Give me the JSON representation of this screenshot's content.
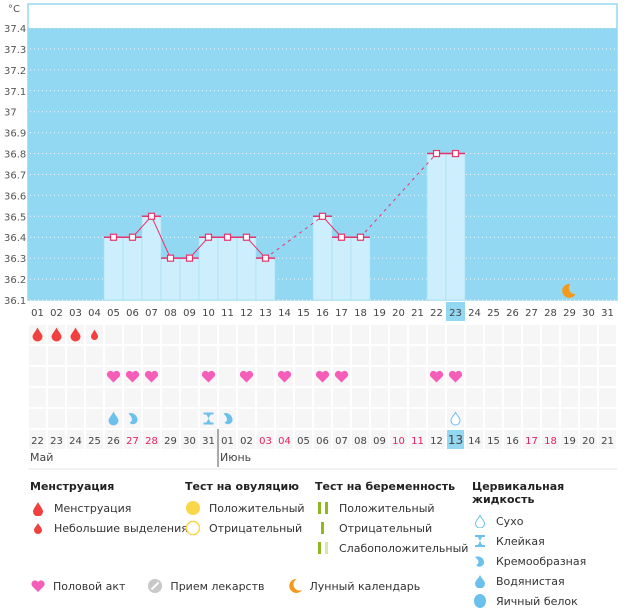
{
  "chart_data": {
    "type": "bar",
    "title": "",
    "unit_label": "°C",
    "ylim": [
      36.1,
      37.4
    ],
    "yticks": [
      "37.4",
      "37.3",
      "37.2",
      "37.1",
      "37",
      "36.9",
      "36.8",
      "36.7",
      "36.6",
      "36.5",
      "36.4",
      "36.3",
      "36.2",
      "36.1"
    ],
    "ytick_values": [
      37.4,
      37.3,
      37.2,
      37.1,
      37.0,
      36.9,
      36.8,
      36.7,
      36.6,
      36.5,
      36.4,
      36.3,
      36.2,
      36.1
    ],
    "cycle_days": [
      "01",
      "02",
      "03",
      "04",
      "05",
      "06",
      "07",
      "08",
      "09",
      "10",
      "11",
      "12",
      "13",
      "14",
      "15",
      "16",
      "17",
      "18",
      "19",
      "20",
      "21",
      "22",
      "23",
      "24",
      "25",
      "26",
      "27",
      "28",
      "29",
      "30",
      "31"
    ],
    "temperatures": [
      null,
      null,
      null,
      null,
      36.4,
      36.4,
      36.5,
      36.3,
      36.3,
      36.4,
      36.4,
      36.4,
      36.3,
      null,
      null,
      36.5,
      36.4,
      36.4,
      null,
      null,
      null,
      36.8,
      36.8,
      null,
      null,
      null,
      null,
      null,
      null,
      null,
      null
    ],
    "selected_day": "23",
    "moon_day": "29",
    "colors": {
      "background": "#93d8f3",
      "bar": "#cdeefc",
      "line": "#e8336b",
      "selected": "#93d8f3",
      "moon": "#f39a1b"
    }
  },
  "symptom_rows": {
    "menstruation": [
      "heavy",
      "heavy",
      "heavy",
      "light",
      null,
      null,
      null,
      null,
      null,
      null,
      null,
      null,
      null,
      null,
      null,
      null,
      null,
      null,
      null,
      null,
      null,
      null,
      null,
      null,
      null,
      null,
      null,
      null,
      null,
      null,
      null
    ],
    "ovulation_test": [
      null,
      null,
      null,
      null,
      null,
      null,
      null,
      null,
      null,
      null,
      null,
      null,
      null,
      null,
      null,
      null,
      null,
      null,
      null,
      null,
      null,
      null,
      null,
      null,
      null,
      null,
      null,
      null,
      null,
      null,
      null
    ],
    "intercourse": [
      false,
      false,
      false,
      false,
      true,
      true,
      true,
      false,
      false,
      true,
      false,
      true,
      false,
      true,
      false,
      true,
      true,
      false,
      false,
      false,
      false,
      true,
      true,
      false,
      false,
      false,
      false,
      false,
      false,
      false,
      false
    ],
    "pregnancy_test": [
      null,
      null,
      null,
      null,
      null,
      null,
      null,
      null,
      null,
      null,
      null,
      null,
      null,
      null,
      null,
      null,
      null,
      null,
      null,
      null,
      null,
      null,
      null,
      null,
      null,
      null,
      null,
      null,
      null,
      null,
      null
    ],
    "cervical_fluid": [
      null,
      null,
      null,
      null,
      "watery",
      "creamy",
      null,
      null,
      null,
      "sticky",
      "creamy",
      null,
      null,
      null,
      null,
      null,
      null,
      null,
      null,
      null,
      null,
      null,
      "dry",
      null,
      null,
      null,
      null,
      null,
      null,
      null,
      null
    ]
  },
  "calendar": {
    "dates": [
      "22",
      "23",
      "24",
      "25",
      "26",
      "27",
      "28",
      "29",
      "30",
      "31",
      "01",
      "02",
      "03",
      "04",
      "05",
      "06",
      "07",
      "08",
      "09",
      "10",
      "11",
      "12",
      "13",
      "14",
      "15",
      "16",
      "17",
      "18",
      "19",
      "20",
      "21"
    ],
    "highlighted_dates": [
      5,
      6,
      12,
      13,
      19,
      20,
      26,
      27
    ],
    "selected_index": 22,
    "months": [
      {
        "label": "Май",
        "start": 0
      },
      {
        "label": "Июнь",
        "start": 10
      }
    ]
  },
  "legend": {
    "menstruation": {
      "title": "Менструация",
      "items": [
        "Менструация",
        "Небольшие выделения"
      ]
    },
    "ovulation": {
      "title": "Тест на овуляцию",
      "items": [
        "Положительный",
        "Отрицательный"
      ]
    },
    "pregnancy": {
      "title": "Тест на беременность",
      "items": [
        "Положительный",
        "Отрицательный",
        "Слабоположительный"
      ]
    },
    "cervical": {
      "title": "Цервикальная жидкость",
      "items": [
        "Сухо",
        "Клейкая",
        "Кремообразная",
        "Водянистая",
        "Яичный белок"
      ]
    },
    "bottom": [
      "Половой акт",
      "Прием лекарств",
      "Лунный календарь"
    ]
  }
}
